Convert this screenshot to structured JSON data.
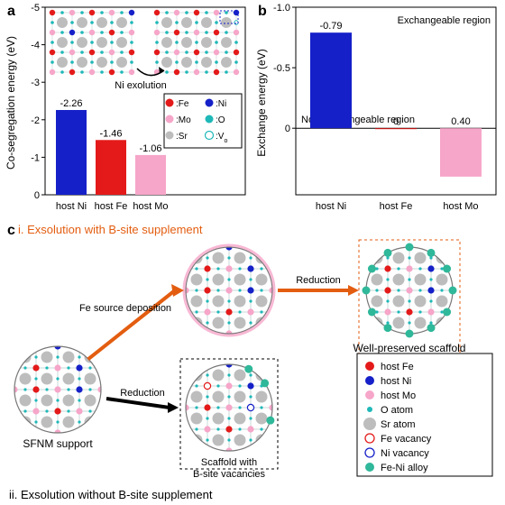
{
  "panel_a": {
    "label": "a",
    "y_label": "Co-segregation energy (eV)",
    "y_ticks": [
      "-5",
      "-4",
      "-3",
      "-2",
      "-1",
      "0"
    ],
    "ylim": [
      -5,
      0
    ],
    "inset_process_label": "Ni exolution",
    "categories": [
      "host Ni",
      "host Fe",
      "host Mo"
    ],
    "values": [
      -2.26,
      -1.46,
      -1.06
    ],
    "value_labels": [
      "-2.26",
      "-1.46",
      "-1.06"
    ],
    "bar_colors": [
      "#1520c8",
      "#e41a1a",
      "#f6a6c9"
    ],
    "legend": [
      {
        "label": ":Fe",
        "color": "#e41a1a"
      },
      {
        "label": ":Ni",
        "color": "#1520c8"
      },
      {
        "label": ":Mo",
        "color": "#f6a6c9"
      },
      {
        "label": ":O",
        "color": "#1fb8b8"
      },
      {
        "label": ":Sr",
        "color": "#bdbdbd"
      },
      {
        "label": ":V",
        "sub": "o",
        "stroke": "#1fb8b8",
        "fill": "#ffffff"
      }
    ],
    "inset_colors": {
      "sr": "#bdbdbd",
      "o": "#1fb8b8",
      "fe": "#e41a1a",
      "ni": "#1520c8",
      "mo": "#f6a6c9",
      "vo_stroke": "#1fb8b8"
    }
  },
  "panel_b": {
    "label": "b",
    "y_label": "Exchange energy (eV)",
    "y_ticks": [
      "-1.0",
      "-0.5",
      "0"
    ],
    "ylim": [
      -1.0,
      0.55
    ],
    "categories": [
      "host Ni",
      "host Fe",
      "host Mo"
    ],
    "values": [
      -0.79,
      0,
      0.4
    ],
    "value_labels": [
      "-0.79",
      "0",
      "0.40"
    ],
    "bar_colors": [
      "#1520c8",
      "#e41a1a",
      "#f6a6c9"
    ],
    "region_top": "Exchangeable region",
    "region_bottom": "Non-exchangeable region"
  },
  "panel_c": {
    "label": "c",
    "title_i": "i. Exsolution with B-site supplement",
    "title_i_color": "#e35d10",
    "title_ii": "ii. Exsolution without B-site supplement",
    "title_ii_color": "#000000",
    "labels": {
      "fe_source": "Fe source deposition",
      "reduction": "Reduction",
      "sfnm": "SFNM support",
      "scaffold_vac": "Scaffold with\nB-site vacancies",
      "well_preserved": "Well-preserved scaffold"
    },
    "arrow_colors": {
      "orange": "#e35d10",
      "black": "#000000"
    },
    "circle_colors": {
      "sr": "#bdbdbd",
      "o": "#1fb8b8",
      "fe": "#e41a1a",
      "ni": "#1520c8",
      "mo": "#f6a6c9",
      "feni": "#2fb89a",
      "vac_stroke": "#888"
    },
    "legend": [
      {
        "label": "host Fe",
        "fill": "#e41a1a"
      },
      {
        "label": "host Ni",
        "fill": "#1520c8"
      },
      {
        "label": "host Mo",
        "fill": "#f6a6c9"
      },
      {
        "label": "O atom",
        "fill": "#1fb8b8",
        "small": true
      },
      {
        "label": "Sr atom",
        "fill": "#bdbdbd",
        "big": true
      },
      {
        "label": "Fe vacancy",
        "stroke": "#e41a1a",
        "fill": "#ffffff"
      },
      {
        "label": "Ni vacancy",
        "stroke": "#1520c8",
        "fill": "#ffffff"
      },
      {
        "label": "Fe-Ni alloy",
        "fill": "#2fb89a"
      }
    ]
  }
}
